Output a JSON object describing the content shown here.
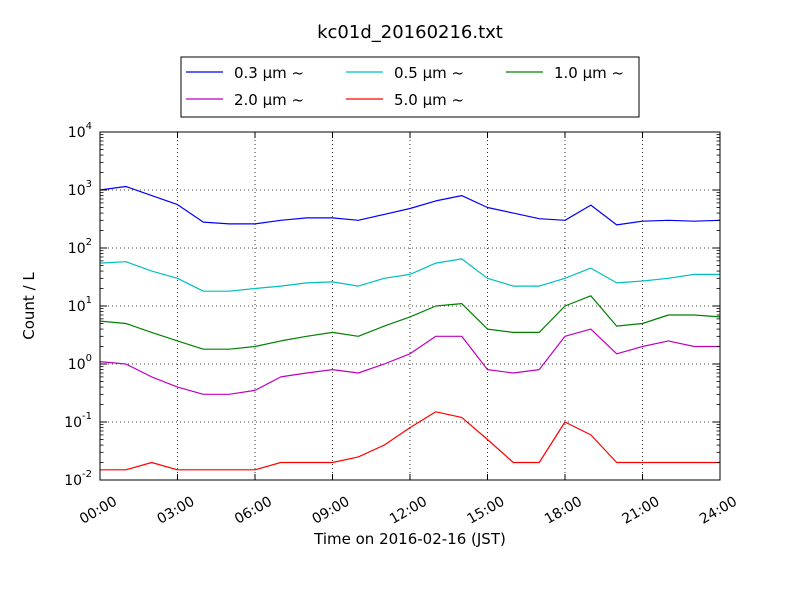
{
  "chart_data": {
    "type": "line",
    "title": "kc01d_20160216.txt",
    "xlabel": "Time on 2016-02-16 (JST)",
    "ylabel": "Count / L",
    "yscale": "log",
    "ylim": [
      0.01,
      10000
    ],
    "xlim": [
      "00:00",
      "24:00"
    ],
    "x_ticks": [
      "00:00",
      "03:00",
      "06:00",
      "09:00",
      "12:00",
      "15:00",
      "18:00",
      "21:00",
      "24:00"
    ],
    "y_ticks": [
      {
        "base": "10",
        "exp": "-2"
      },
      {
        "base": "10",
        "exp": "-1"
      },
      {
        "base": "10",
        "exp": "0"
      },
      {
        "base": "10",
        "exp": "1"
      },
      {
        "base": "10",
        "exp": "2"
      },
      {
        "base": "10",
        "exp": "3"
      },
      {
        "base": "10",
        "exp": "4"
      }
    ],
    "grid": true,
    "legend_position": "top-center (above plot)",
    "x": [
      "00:00",
      "01:00",
      "02:00",
      "03:00",
      "04:00",
      "05:00",
      "06:00",
      "07:00",
      "08:00",
      "09:00",
      "10:00",
      "11:00",
      "12:00",
      "13:00",
      "14:00",
      "15:00",
      "16:00",
      "17:00",
      "18:00",
      "19:00",
      "20:00",
      "21:00",
      "22:00",
      "23:00",
      "24:00"
    ],
    "series": [
      {
        "name": "0.3 μm ~",
        "color": "#0000ff",
        "values": [
          1000,
          1150,
          800,
          560,
          280,
          260,
          260,
          300,
          330,
          330,
          300,
          380,
          480,
          650,
          800,
          500,
          400,
          320,
          300,
          550,
          250,
          290,
          300,
          290,
          300
        ]
      },
      {
        "name": "0.5 μm ~",
        "color": "#00bfbf",
        "values": [
          55,
          58,
          40,
          30,
          18,
          18,
          20,
          22,
          25,
          26,
          22,
          30,
          35,
          55,
          65,
          30,
          22,
          22,
          30,
          45,
          25,
          27,
          30,
          35,
          35
        ]
      },
      {
        "name": "1.0 μm ~",
        "color": "#008000",
        "values": [
          5.5,
          5.0,
          3.5,
          2.5,
          1.8,
          1.8,
          2.0,
          2.5,
          3.0,
          3.5,
          3.0,
          4.5,
          6.5,
          10,
          11,
          4.0,
          3.5,
          3.5,
          10,
          15,
          4.5,
          5.0,
          7.0,
          7.0,
          6.5
        ]
      },
      {
        "name": "2.0 μm ~",
        "color": "#bf00bf",
        "values": [
          1.1,
          1.0,
          0.6,
          0.4,
          0.3,
          0.3,
          0.35,
          0.6,
          0.7,
          0.8,
          0.7,
          1.0,
          1.5,
          3.0,
          3.0,
          0.8,
          0.7,
          0.8,
          3.0,
          4.0,
          1.5,
          2.0,
          2.5,
          2.0,
          2.0
        ]
      },
      {
        "name": "5.0 μm ~",
        "color": "#ff0000",
        "values": [
          0.015,
          0.015,
          0.02,
          0.015,
          0.015,
          0.015,
          0.015,
          0.02,
          0.02,
          0.02,
          0.025,
          0.04,
          0.08,
          0.15,
          0.12,
          0.05,
          0.02,
          0.02,
          0.1,
          0.06,
          0.02,
          0.02,
          0.02,
          0.02,
          0.02
        ]
      }
    ]
  }
}
